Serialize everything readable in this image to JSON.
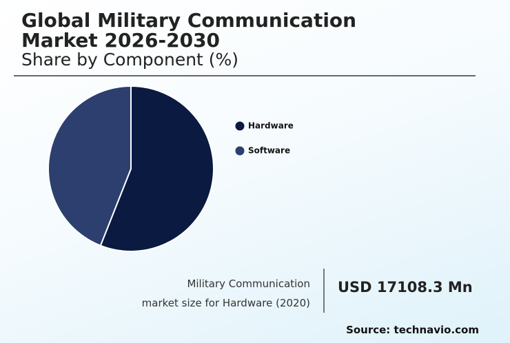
{
  "chart_data": {
    "type": "pie",
    "title": [
      "Global Military Communication",
      "Market 2026-2030"
    ],
    "subtitle": "Share by Component (%)",
    "categories": [
      "Hardware",
      "Software"
    ],
    "values": [
      56,
      44
    ],
    "colors": [
      "#0a1a40",
      "#2c3f6f"
    ],
    "annotation": [
      "Military Communication",
      "market size for Hardware (2020)"
    ],
    "highlight": "USD 17108.3 Mn",
    "source": "Source: technavio.com"
  }
}
